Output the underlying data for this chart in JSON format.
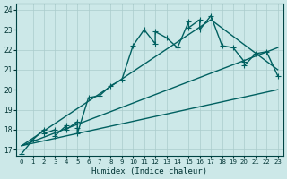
{
  "xlabel": "Humidex (Indice chaleur)",
  "bg_color": "#cce8e8",
  "grid_color": "#aacccc",
  "line_color": "#006060",
  "xlim": [
    -0.5,
    23.5
  ],
  "ylim": [
    16.7,
    24.3
  ],
  "yticks": [
    17,
    18,
    19,
    20,
    21,
    22,
    23,
    24
  ],
  "xticks": [
    0,
    1,
    2,
    3,
    4,
    5,
    6,
    7,
    8,
    9,
    10,
    11,
    12,
    13,
    14,
    15,
    16,
    17,
    18,
    19,
    20,
    21,
    22,
    23
  ],
  "main_line_x": [
    0,
    1,
    2,
    2,
    3,
    3,
    4,
    4,
    5,
    5,
    5,
    6,
    7,
    8,
    9,
    10,
    11,
    12,
    12,
    13,
    14,
    15,
    15,
    16,
    16,
    17,
    18,
    19,
    20,
    20,
    21,
    22,
    23
  ],
  "main_line_y": [
    16.8,
    17.5,
    18.0,
    17.8,
    18.0,
    17.7,
    18.2,
    18.0,
    18.4,
    18.1,
    17.8,
    19.6,
    19.7,
    20.2,
    20.5,
    22.2,
    23.0,
    22.3,
    22.9,
    22.6,
    22.1,
    23.4,
    23.1,
    23.5,
    23.0,
    23.7,
    22.2,
    22.1,
    21.4,
    21.2,
    21.8,
    21.9,
    20.7
  ],
  "upper_line_x": [
    0,
    17,
    23
  ],
  "upper_line_y": [
    17.2,
    23.5,
    21.0
  ],
  "middle_line_x": [
    0,
    23
  ],
  "middle_line_y": [
    17.2,
    22.1
  ],
  "lower_line_x": [
    0,
    23
  ],
  "lower_line_y": [
    17.2,
    20.0
  ],
  "markersize": 3,
  "linewidth": 1.0
}
